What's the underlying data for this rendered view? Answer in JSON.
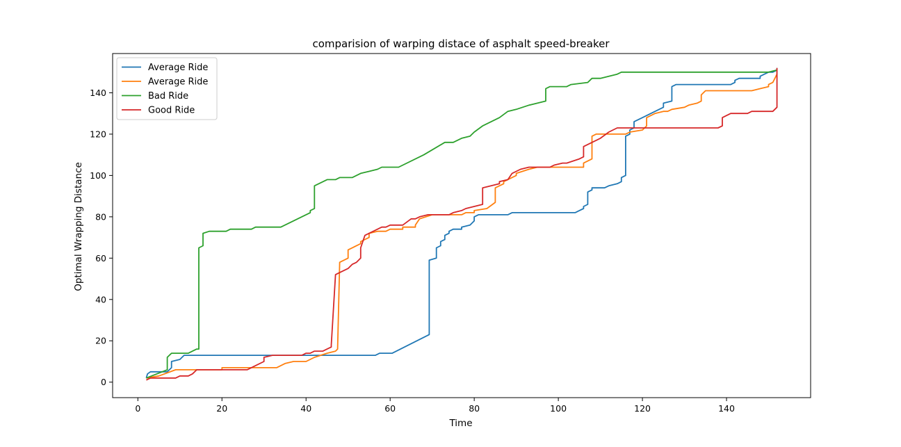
{
  "chart_data": {
    "type": "line",
    "title": "comparision of warping distace of asphalt speed-breaker",
    "xlabel": "Time",
    "ylabel": "Optimal Wrapping Distance",
    "xlim": [
      -6,
      160
    ],
    "ylim": [
      -7.5,
      159
    ],
    "xticks": [
      0,
      20,
      40,
      60,
      80,
      100,
      120,
      140
    ],
    "yticks": [
      0,
      20,
      40,
      60,
      80,
      100,
      120,
      140
    ],
    "grid": false,
    "legend_position": "top-left",
    "series": [
      {
        "name": "Average Ride",
        "color": "#1f77b4",
        "points": [
          [
            2,
            2
          ],
          [
            2.3,
            4
          ],
          [
            3,
            5
          ],
          [
            7,
            5
          ],
          [
            8,
            7
          ],
          [
            8,
            10
          ],
          [
            10,
            11
          ],
          [
            10.5,
            12
          ],
          [
            11,
            13
          ],
          [
            45,
            13
          ],
          [
            56.5,
            13
          ],
          [
            57.5,
            14
          ],
          [
            60.5,
            14
          ],
          [
            69.3,
            23
          ],
          [
            69.3,
            59
          ],
          [
            71,
            60
          ],
          [
            71,
            65
          ],
          [
            72,
            66
          ],
          [
            72,
            68
          ],
          [
            73,
            69
          ],
          [
            73,
            71
          ],
          [
            74,
            72
          ],
          [
            74,
            73
          ],
          [
            75,
            74
          ],
          [
            77,
            74
          ],
          [
            77,
            75
          ],
          [
            79,
            76
          ],
          [
            79.5,
            77
          ],
          [
            80,
            78
          ],
          [
            80,
            80
          ],
          [
            81,
            81
          ],
          [
            88,
            81
          ],
          [
            89,
            82
          ],
          [
            104,
            82
          ],
          [
            105,
            83
          ],
          [
            106,
            84
          ],
          [
            106,
            85
          ],
          [
            107,
            86
          ],
          [
            107,
            92
          ],
          [
            108,
            93
          ],
          [
            108,
            94
          ],
          [
            111,
            94
          ],
          [
            112,
            95
          ],
          [
            114,
            96
          ],
          [
            115,
            97
          ],
          [
            115,
            99
          ],
          [
            116,
            100
          ],
          [
            116,
            119
          ],
          [
            117,
            120
          ],
          [
            117,
            122
          ],
          [
            118,
            123
          ],
          [
            118,
            126
          ],
          [
            120,
            128
          ],
          [
            122,
            130
          ],
          [
            125,
            133
          ],
          [
            125,
            135
          ],
          [
            127,
            136
          ],
          [
            127,
            143
          ],
          [
            128,
            144
          ],
          [
            141,
            144
          ],
          [
            142,
            145
          ],
          [
            142,
            146
          ],
          [
            143,
            147
          ],
          [
            148,
            147
          ],
          [
            148,
            148
          ],
          [
            149,
            149
          ],
          [
            150,
            150
          ],
          [
            151,
            150
          ],
          [
            152,
            151
          ],
          [
            152,
            152
          ]
        ]
      },
      {
        "name": "Average Ride",
        "color": "#ff7f0e",
        "points": [
          [
            2,
            2
          ],
          [
            5,
            3
          ],
          [
            9,
            6
          ],
          [
            20,
            6
          ],
          [
            20,
            7
          ],
          [
            33,
            7
          ],
          [
            35,
            9
          ],
          [
            37,
            10
          ],
          [
            40,
            10
          ],
          [
            42,
            12
          ],
          [
            45,
            14
          ],
          [
            47,
            15
          ],
          [
            47.5,
            16
          ],
          [
            48,
            58
          ],
          [
            50,
            60
          ],
          [
            50,
            64
          ],
          [
            53,
            67
          ],
          [
            53,
            68
          ],
          [
            55,
            70
          ],
          [
            55,
            72
          ],
          [
            57,
            73
          ],
          [
            59,
            73
          ],
          [
            60,
            74
          ],
          [
            63,
            74
          ],
          [
            63,
            75
          ],
          [
            66,
            75
          ],
          [
            66,
            76
          ],
          [
            67,
            79
          ],
          [
            70,
            81
          ],
          [
            77,
            81
          ],
          [
            78,
            82
          ],
          [
            80,
            82
          ],
          [
            80,
            83
          ],
          [
            83,
            84
          ],
          [
            85,
            87
          ],
          [
            85,
            94
          ],
          [
            87,
            96
          ],
          [
            87,
            97
          ],
          [
            90,
            100
          ],
          [
            90,
            101
          ],
          [
            93,
            103
          ],
          [
            95,
            104
          ],
          [
            106,
            104
          ],
          [
            106,
            106
          ],
          [
            108,
            108
          ],
          [
            108,
            119
          ],
          [
            109,
            120
          ],
          [
            116,
            120
          ],
          [
            117,
            121
          ],
          [
            120,
            122
          ],
          [
            121,
            124
          ],
          [
            121,
            128
          ],
          [
            123,
            130
          ],
          [
            125,
            131
          ],
          [
            126,
            131
          ],
          [
            127,
            132
          ],
          [
            130,
            133
          ],
          [
            131,
            134
          ],
          [
            133,
            135
          ],
          [
            134,
            136
          ],
          [
            134,
            139
          ],
          [
            135,
            141
          ],
          [
            146,
            141
          ],
          [
            148,
            142
          ],
          [
            150,
            143
          ],
          [
            150,
            144
          ],
          [
            151,
            145
          ],
          [
            152,
            149
          ],
          [
            152,
            151
          ]
        ]
      },
      {
        "name": "Bad Ride",
        "color": "#2ca02c",
        "points": [
          [
            2,
            2
          ],
          [
            7,
            6
          ],
          [
            7,
            12
          ],
          [
            8,
            14
          ],
          [
            12,
            14
          ],
          [
            13,
            15
          ],
          [
            14,
            16
          ],
          [
            14.5,
            16
          ],
          [
            14.5,
            65
          ],
          [
            15.5,
            66
          ],
          [
            15.5,
            72
          ],
          [
            17,
            73
          ],
          [
            21,
            73
          ],
          [
            22,
            74
          ],
          [
            27,
            74
          ],
          [
            28,
            75
          ],
          [
            34,
            75
          ],
          [
            41,
            82
          ],
          [
            41,
            83
          ],
          [
            42,
            84
          ],
          [
            42,
            95
          ],
          [
            45,
            98
          ],
          [
            47,
            98
          ],
          [
            48,
            99
          ],
          [
            51,
            99
          ],
          [
            53,
            101
          ],
          [
            55,
            102
          ],
          [
            57,
            103
          ],
          [
            58,
            104
          ],
          [
            62,
            104
          ],
          [
            68,
            110
          ],
          [
            73,
            116
          ],
          [
            75,
            116
          ],
          [
            77,
            118
          ],
          [
            79,
            119
          ],
          [
            80,
            121
          ],
          [
            82,
            124
          ],
          [
            86,
            128
          ],
          [
            88,
            131
          ],
          [
            90,
            132
          ],
          [
            93,
            134
          ],
          [
            95,
            135
          ],
          [
            97,
            136
          ],
          [
            97,
            142
          ],
          [
            98,
            143
          ],
          [
            102,
            143
          ],
          [
            103,
            144
          ],
          [
            107,
            145
          ],
          [
            108,
            147
          ],
          [
            110,
            147
          ],
          [
            112,
            148
          ],
          [
            114,
            149
          ],
          [
            115,
            150
          ],
          [
            140,
            150
          ],
          [
            150,
            150
          ],
          [
            152,
            151
          ]
        ]
      },
      {
        "name": "Good Ride",
        "color": "#d62728",
        "points": [
          [
            2,
            1
          ],
          [
            3,
            2
          ],
          [
            9,
            2
          ],
          [
            10,
            3
          ],
          [
            12,
            3
          ],
          [
            13,
            4
          ],
          [
            14,
            6
          ],
          [
            26,
            6
          ],
          [
            28,
            8
          ],
          [
            30,
            10
          ],
          [
            30,
            12
          ],
          [
            32,
            13
          ],
          [
            39,
            13
          ],
          [
            40,
            14
          ],
          [
            41,
            14
          ],
          [
            42,
            15
          ],
          [
            44,
            15
          ],
          [
            45,
            16
          ],
          [
            46,
            17
          ],
          [
            46,
            18
          ],
          [
            47,
            52
          ],
          [
            48,
            53
          ],
          [
            50,
            55
          ],
          [
            51,
            57
          ],
          [
            52,
            58
          ],
          [
            53,
            60
          ],
          [
            53,
            65
          ],
          [
            54,
            71
          ],
          [
            57,
            74
          ],
          [
            58,
            75
          ],
          [
            59,
            75
          ],
          [
            60,
            76
          ],
          [
            63,
            76
          ],
          [
            65,
            79
          ],
          [
            66,
            79
          ],
          [
            67,
            80
          ],
          [
            69,
            81
          ],
          [
            74,
            81
          ],
          [
            75,
            82
          ],
          [
            77,
            83
          ],
          [
            78,
            84
          ],
          [
            82,
            86
          ],
          [
            82,
            94
          ],
          [
            84,
            95
          ],
          [
            86,
            96
          ],
          [
            86,
            97
          ],
          [
            88,
            98
          ],
          [
            89,
            101
          ],
          [
            91,
            103
          ],
          [
            93,
            104
          ],
          [
            98,
            104
          ],
          [
            99,
            105
          ],
          [
            101,
            106
          ],
          [
            102,
            106
          ],
          [
            105,
            108
          ],
          [
            106,
            109
          ],
          [
            106,
            114
          ],
          [
            110,
            118
          ],
          [
            112,
            121
          ],
          [
            113,
            122
          ],
          [
            114,
            123
          ],
          [
            120,
            123
          ],
          [
            122,
            123
          ],
          [
            138,
            123
          ],
          [
            139,
            124
          ],
          [
            139,
            128
          ],
          [
            140,
            129
          ],
          [
            141,
            130
          ],
          [
            145,
            130
          ],
          [
            146,
            131
          ],
          [
            151,
            131
          ],
          [
            152,
            133
          ],
          [
            152,
            152
          ]
        ]
      }
    ]
  }
}
